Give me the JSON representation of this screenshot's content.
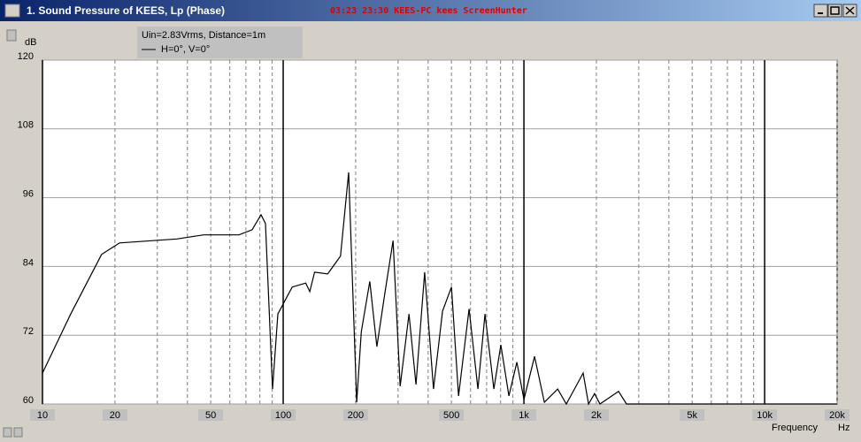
{
  "window": {
    "title": "1. Sound Pressure of KEES, Lp (Phase)",
    "overlay": "03:23  23:30  KEES-PC  kees  ScreenHunter"
  },
  "chart_data": {
    "type": "line",
    "log_x": true,
    "grid": true,
    "y_unit": "dB",
    "x_unit": "Hz",
    "xlabel": "Frequency",
    "legend_header": "Uin=2.83Vrms, Distance=1m",
    "xlim": [
      10,
      20000
    ],
    "ylim": [
      60,
      120
    ],
    "yticks": [
      60,
      72,
      84,
      96,
      108,
      120
    ],
    "xticks": [
      10,
      20,
      50,
      100,
      200,
      500,
      {
        "value": 1000,
        "label": "1k"
      },
      {
        "value": 2000,
        "label": "2k"
      },
      {
        "value": 5000,
        "label": "5k"
      },
      {
        "value": 10000,
        "label": "10k"
      },
      {
        "value": 20000,
        "label": "20k"
      }
    ],
    "xgrid_minor": [
      30,
      40,
      60,
      70,
      80,
      90,
      300,
      400,
      600,
      700,
      800,
      900,
      3000,
      4000,
      6000,
      7000,
      8000,
      9000
    ],
    "x": [
      10,
      13.1,
      17.6,
      20.9,
      36.2,
      46.7,
      65.5,
      74.3,
      80.9,
      84.4,
      90.3,
      95,
      109,
      124,
      129,
      135,
      153,
      173,
      187,
      202,
      211,
      229,
      245,
      265,
      286,
      306,
      333,
      356,
      387,
      421,
      459,
      500,
      535,
      592,
      644,
      689,
      750,
      802,
      866,
      935,
      1000,
      1107,
      1216,
      1381,
      1500,
      1762,
      1855,
      1966,
      2070,
      2473,
      2668,
      20000
    ],
    "series": [
      {
        "name": "H=0°, V=0°",
        "color": "#000000",
        "values": [
          65.4,
          75.7,
          86.1,
          88.1,
          88.8,
          89.5,
          89.5,
          90.4,
          93.0,
          91.5,
          62.6,
          75.7,
          80.4,
          81.1,
          79.6,
          83.0,
          82.7,
          85.8,
          100.4,
          60.3,
          72.6,
          81.4,
          70.0,
          79.6,
          88.5,
          63.1,
          75.7,
          63.4,
          83.0,
          62.6,
          76.2,
          80.4,
          61.4,
          76.6,
          62.6,
          75.7,
          62.6,
          70.3,
          61.4,
          67.3,
          60.8,
          68.3,
          60.3,
          62.6,
          60,
          65.4,
          60,
          61.8,
          60,
          62.2,
          60,
          60
        ]
      }
    ]
  }
}
